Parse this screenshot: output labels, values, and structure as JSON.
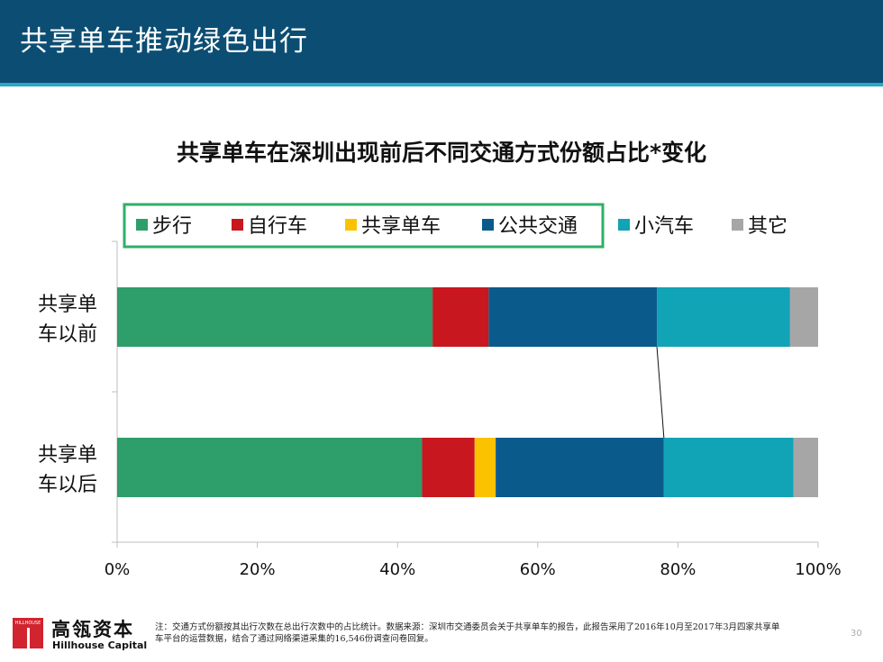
{
  "slide": {
    "title": "共享单车推动绿色出行",
    "page_number": "30"
  },
  "brand": {
    "logo_text": "HILLHOUSE",
    "name_cn": "高瓴资本",
    "name_en": "Hillhouse Capital"
  },
  "footnote": "注：交通方式份额按其出行次数在总出行次数中的占比统计。数据来源：深圳市交通委员会关于共享单车的报告，此报告采用了2016年10月至2017年3月四家共享单车平台的运营数据，结合了通过网络渠道采集的16,546份调查问卷回复。",
  "chart_data": {
    "type": "bar",
    "orientation": "horizontal",
    "stacked": true,
    "title": "共享单车在深圳出现前后不同交通方式份额占比*变化",
    "categories": [
      "共享单车以前",
      "共享单车以后"
    ],
    "category_lines": [
      [
        "共享单",
        "车以前"
      ],
      [
        "共享单",
        "车以后"
      ]
    ],
    "series": [
      {
        "name": "步行",
        "color": "#2e9e6b",
        "values": [
          45,
          43.5
        ]
      },
      {
        "name": "自行车",
        "color": "#c8171e",
        "values": [
          8,
          7.5
        ]
      },
      {
        "name": "共享单车",
        "color": "#fbc200",
        "values": [
          0,
          3
        ]
      },
      {
        "name": "公共交通",
        "color": "#0b5a8c",
        "values": [
          24,
          24
        ]
      },
      {
        "name": "小汽车",
        "color": "#11a3b6",
        "values": [
          19,
          18.5
        ]
      },
      {
        "name": "其它",
        "color": "#a6a6a6",
        "values": [
          4,
          3.5
        ]
      }
    ],
    "xlim": [
      0,
      100
    ],
    "xticks": [
      "0%",
      "20%",
      "40%",
      "60%",
      "80%",
      "100%"
    ],
    "grid": false,
    "legend_position": "top",
    "legend_highlight_color": "#2eb066",
    "legend_highlight_items": [
      "步行",
      "自行车",
      "共享单车",
      "公共交通"
    ],
    "connector": {
      "series": "公共交通",
      "edge": "end"
    }
  }
}
